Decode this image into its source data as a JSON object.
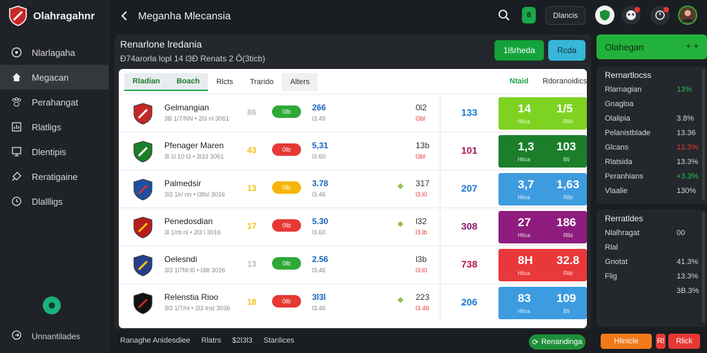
{
  "app": {
    "brand": "Olahragahnr",
    "page_title": "Meganha Mlecansia",
    "search_icon": "search-icon",
    "shield_label": "8",
    "mini_button": "Dlancis"
  },
  "sidebar": {
    "items": [
      {
        "label": "Nlarlagaha",
        "icon": "soccer-ball-icon",
        "active": false
      },
      {
        "label": "Megacan",
        "icon": "home-icon",
        "active": true
      },
      {
        "label": "Perahangat",
        "icon": "paw-icon",
        "active": false
      },
      {
        "label": "Rlatligs",
        "icon": "chart-icon",
        "active": false
      },
      {
        "label": "Dlentipis",
        "icon": "monitor-icon",
        "active": false
      },
      {
        "label": "Reratigaine",
        "icon": "tag-icon",
        "active": false
      },
      {
        "label": "Dlallligs",
        "icon": "clock-icon",
        "active": false
      }
    ],
    "footer_label": "Unnantilades"
  },
  "main": {
    "title": "Renarlone lredania",
    "subtitle": "Đ74arorla lopl 14 l3Đ  Renats 2 Ô(3ticb)",
    "btn_green": "1lšrheda",
    "btn_blue": "Rcda",
    "tabs": [
      {
        "label": "Rladian",
        "type": "active"
      },
      {
        "label": "Boach",
        "type": "active"
      },
      {
        "label": "Rlcts",
        "type": "plain"
      },
      {
        "label": "Trarido",
        "type": "plain"
      },
      {
        "label": "Alters",
        "type": "grey"
      }
    ],
    "col_head_a": "Ntaid",
    "col_head_b": "Rdoranoidics",
    "rows": [
      {
        "name": "Gelmangian",
        "sub": "3B 1/7/NN • 2l3 nl 3061",
        "num_a": "86",
        "num_a_color": "#bdbdbd",
        "pill": "0lb",
        "pill_color": "#2ea836",
        "odd": "266",
        "odd_sub": "l3.49",
        "mark": false,
        "val": "0l2",
        "val_sub": "l3bl",
        "num_c": "133",
        "num_c_color": "#1976d2",
        "box_color": "#7ed321",
        "box_a": "14",
        "box_b": "1/5",
        "box_sa": "Hlica",
        "box_sb": "Rlbi"
      },
      {
        "name": "Pfenager Maren",
        "sub": "3l 1l 10 l3 • 3l33 3061",
        "num_a": "43",
        "num_a_color": "#f4c20d",
        "pill": "0lb",
        "pill_color": "#e53935",
        "odd": "5,31",
        "odd_sub": "l3.60",
        "mark": false,
        "val": "13b",
        "val_sub": "l3bl",
        "num_c": "101",
        "num_c_color": "#ad1457",
        "box_color": "#1b7f2a",
        "box_a": "1,3",
        "box_b": "103",
        "box_sa": "Hlica",
        "box_sb": "Bl/"
      },
      {
        "name": "Palmedsir",
        "sub": "3l3 1lr/ nn • l3llsl 3016",
        "num_a": "13",
        "num_a_color": "#f4c20d",
        "pill": "0lb",
        "pill_color": "#f5b50a",
        "odd": "3.78",
        "odd_sub": "l3.46",
        "mark": true,
        "val": "317",
        "val_sub": "l3.l0",
        "num_c": "207",
        "num_c_color": "#1976d2",
        "box_color": "#3d9be0",
        "box_a": "3,7",
        "box_b": "1,63",
        "box_sa": "Hlica",
        "box_sb": "Rlbi"
      },
      {
        "name": "Penedosdian",
        "sub": "3l 1/rb nl • 2l3 l 3016",
        "num_a": "17",
        "num_a_color": "#f4c20d",
        "pill": "0lb",
        "pill_color": "#e53935",
        "odd": "5.30",
        "odd_sub": "l3.60",
        "mark": true,
        "val": "l32",
        "val_sub": "l3.lb",
        "num_c": "308",
        "num_c_color": "#8e1c6e",
        "box_color": "#8e1c7e",
        "box_a": "27",
        "box_b": "186",
        "box_sa": "Hlica",
        "box_sb": "Rlbi"
      },
      {
        "name": "Oelesndi",
        "sub": "3l3 1l7Nl l0 • l3lll 3026",
        "num_a": "13",
        "num_a_color": "#bdbdbd",
        "pill": "0lb",
        "pill_color": "#2ea836",
        "odd": "2.56",
        "odd_sub": "l3.46",
        "mark": false,
        "val": "l3b",
        "val_sub": "l3.l0",
        "num_c": "738",
        "num_c_color": "#ad1457",
        "box_color": "#e8383a",
        "box_a": "8H",
        "box_b": "32.8",
        "box_sa": "Hlica",
        "box_sb": "Rlbi"
      },
      {
        "name": "Relenstia Rioo",
        "sub": "3l3 1/7/nl • 2l3 lnsl 3036",
        "num_a": "18",
        "num_a_color": "#f4c20d",
        "pill": "0lb",
        "pill_color": "#e53935",
        "odd": "3l3l",
        "odd_sub": "l3.46",
        "mark": true,
        "val": "223",
        "val_sub": "l3.46",
        "num_c": "206",
        "num_c_color": "#1976d2",
        "box_color": "#3d9be0",
        "box_a": "83",
        "box_b": "109",
        "box_sa": "Hlica",
        "box_sb": "Bl/"
      }
    ]
  },
  "footer": {
    "items": [
      "Ranaghe Anidesdiee",
      "Rlatrs",
      "$2l3l3",
      "Stanlices"
    ],
    "button": "Renandinga"
  },
  "right": {
    "banner": "Olahegan",
    "banner_icons": "+  +",
    "box1_title": "Rernartlocss",
    "box1_rows": [
      {
        "label": "Rlarnagian",
        "value": "13%",
        "color": "#22c55e"
      },
      {
        "label": "Gnagloa",
        "value": "",
        "color": "#d5d5d5"
      },
      {
        "label": "Olalipia",
        "value": "3.8%",
        "color": "#d5d5d5"
      },
      {
        "label": "Pelanistblade",
        "value": "13.36",
        "color": "#d5d5d5"
      },
      {
        "label": "Glcans",
        "value": "13.3%",
        "color": "#e53935"
      },
      {
        "label": "Rlatsida",
        "value": "13.3%",
        "color": "#d5d5d5"
      },
      {
        "label": "Peranhians",
        "value": "+3.3%",
        "color": "#22c55e"
      },
      {
        "label": "Vlaalie",
        "value": "130%",
        "color": "#d5d5d5"
      }
    ],
    "box2_title": "Rerratldes",
    "box2_rows": [
      {
        "label": "Nlalhragat",
        "value": "00"
      },
      {
        "label": "Rlal",
        "value": ""
      },
      {
        "label": "Gnotat",
        "value": "41.3%"
      },
      {
        "label": "Flig",
        "value": "13.3%"
      },
      {
        "label": "",
        "value": "3B.3%"
      }
    ],
    "foot_orange": "Hlinicle",
    "foot_red_small": "Rl",
    "foot_red": "Rlick"
  }
}
